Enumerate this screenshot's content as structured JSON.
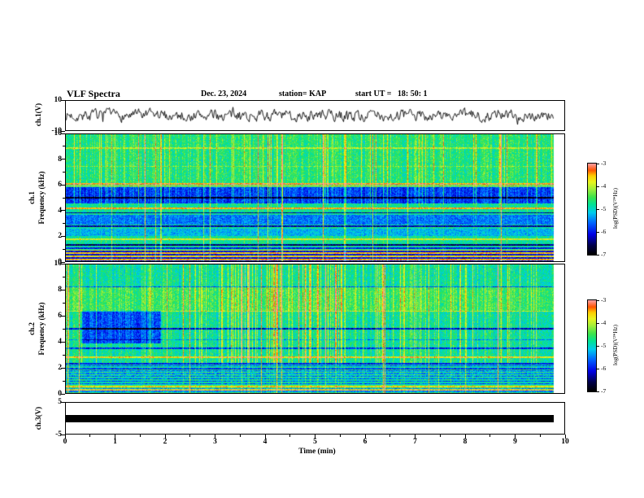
{
  "header": {
    "title": "VLF Spectra",
    "date": "Dec. 23, 2024",
    "station": "station= KAP",
    "start_ut": "start UT =   18: 50: 1"
  },
  "axes": {
    "x": {
      "label": "Time (min)",
      "min": 0,
      "max": 10,
      "major_ticks": [
        0,
        1,
        2,
        3,
        4,
        5,
        6,
        7,
        8,
        9,
        10
      ]
    },
    "ch1_wave": {
      "label": "ch.1(V)",
      "min": -10,
      "max": 10,
      "tick_labels": [
        10,
        -10
      ]
    },
    "ch1_spec": {
      "label_line1": "ch.1",
      "label_line2": "Frequency (kHz)",
      "min": 0,
      "max": 10,
      "major_ticks": [
        0,
        2,
        4,
        6,
        8,
        10
      ]
    },
    "ch2_spec": {
      "label_line1": "ch.2",
      "label_line2": "Frequency (kHz)",
      "min": 0,
      "max": 10,
      "major_ticks": [
        0,
        2,
        4,
        6,
        8,
        10
      ]
    },
    "ch3": {
      "label": "ch.3(V)",
      "min": -5,
      "max": 5,
      "tick_labels": [
        5,
        -5
      ]
    }
  },
  "colorbar": {
    "label": "log(PSD)(V²*Hz)",
    "min": -7,
    "max": -3,
    "tick_labels": [
      -3,
      -4,
      -5,
      -6,
      -7
    ],
    "stops": [
      {
        "t": 0.0,
        "c": "#000000"
      },
      {
        "t": 0.1,
        "c": "#00004d"
      },
      {
        "t": 0.22,
        "c": "#0000e6"
      },
      {
        "t": 0.35,
        "c": "#0066ff"
      },
      {
        "t": 0.46,
        "c": "#00ccee"
      },
      {
        "t": 0.55,
        "c": "#00e296"
      },
      {
        "t": 0.63,
        "c": "#3ae34d"
      },
      {
        "t": 0.72,
        "c": "#a0ef3a"
      },
      {
        "t": 0.8,
        "c": "#eaf51e"
      },
      {
        "t": 0.87,
        "c": "#ffcc00"
      },
      {
        "t": 0.93,
        "c": "#ff5500"
      },
      {
        "t": 1.0,
        "c": "#ff9c9c"
      }
    ]
  },
  "chart_data": [
    {
      "id": "ch1_waveform",
      "type": "line",
      "description": "Channel 1 time-series voltage: band-limited noise, mean 0 V, typical peaks ±5 to ±7 V, continuous over 0–9.8 min",
      "xlim": [
        0,
        10
      ],
      "ylim": [
        -10,
        10
      ],
      "data_end_min": 9.78,
      "seed": 7,
      "amplitude": 3.2,
      "smooth": 0.5
    },
    {
      "id": "ch1_spectrogram",
      "type": "heatmap",
      "description": "Channel 1 VLF power spectral density spectrogram, 0–10 kHz vs 0–9.8 min; green/cyan noise background near -4.8, dark blue band 4.6–5.9 kHz, strong red line near 6.1 kHz, bright hum harmonic lines below 1 kHz, many bright vertical sferic streaks above ~4.5 kHz",
      "xlim": [
        0,
        10
      ],
      "ylim": [
        0,
        10
      ],
      "zlim": [
        -7,
        -3
      ],
      "base_level": -4.8,
      "data_end_min": 9.78,
      "seed": 11,
      "bands": [
        {
          "y0": 6.2,
          "y1": 10,
          "dv": 0.15
        },
        {
          "y0": 4.6,
          "y1": 5.9,
          "dv": -1.0
        },
        {
          "y0": 2.9,
          "y1": 3.7,
          "dv": -0.75
        },
        {
          "y0": 2.0,
          "y1": 2.6,
          "dv": -0.45
        },
        {
          "y0": 0.0,
          "y1": 0.95,
          "dv": -1.3
        }
      ],
      "lines": [
        {
          "y": 6.1,
          "dv": 1.45,
          "w": 0.07
        },
        {
          "y": 5.93,
          "dv": 1.0,
          "w": 0.05
        },
        {
          "y": 4.18,
          "dv": 1.35,
          "w": 0.06
        },
        {
          "y": 5.05,
          "dv": -1.2,
          "w": 0.05
        },
        {
          "y": 3.85,
          "dv": -1.6,
          "w": 0.05
        },
        {
          "y": 2.78,
          "dv": -1.5,
          "w": 0.05
        },
        {
          "y": 1.32,
          "dv": -1.7,
          "w": 0.05
        },
        {
          "y": 1.05,
          "dv": -1.2,
          "w": 0.04
        },
        {
          "y": 1.75,
          "dv": 0.9,
          "w": 0.05
        },
        {
          "y": 0.15,
          "dv": 2.6,
          "w": 0.05
        },
        {
          "y": 0.42,
          "dv": 2.4,
          "w": 0.05
        },
        {
          "y": 0.68,
          "dv": 2.5,
          "w": 0.05
        },
        {
          "y": 0.9,
          "dv": 2.2,
          "w": 0.04
        },
        {
          "y": 8.95,
          "dv": 0.6,
          "w": 0.05
        },
        {
          "y": 7.5,
          "dv": 0.4,
          "w": 0.05
        }
      ],
      "streaks": {
        "density": 0.1,
        "strength": 0.85,
        "min_khz": 4.5,
        "full_density": 0.02,
        "full_strength": 1.5
      }
    },
    {
      "id": "ch2_spectrogram",
      "type": "heatmap",
      "description": "Channel 2 VLF power spectral density spectrogram, 0–10 kHz vs 0–9.8 min; brighter band 6.4–8.2 kHz, dark lines near 5.0 and 3.5 kHz, blue patch 0.3–1.9 min at 4–6.4 kHz, fine horizontal striations below ~2.2 kHz, cluster of intense red vertical streaks around 3.2–5.6 min",
      "xlim": [
        0,
        10
      ],
      "ylim": [
        0,
        10
      ],
      "zlim": [
        -7,
        -3
      ],
      "base_level": -4.8,
      "data_end_min": 9.78,
      "seed": 23,
      "bands": [
        {
          "y0": 6.4,
          "y1": 8.25,
          "dv": 0.3
        },
        {
          "y0": 0.0,
          "y1": 2.25,
          "dv": -0.35
        }
      ],
      "lines": [
        {
          "y": 8.28,
          "dv": -0.9,
          "w": 0.05
        },
        {
          "y": 6.38,
          "dv": 0.8,
          "w": 0.05
        },
        {
          "y": 5.05,
          "dv": -1.4,
          "w": 0.06
        },
        {
          "y": 4.2,
          "dv": -0.6,
          "w": 0.04
        },
        {
          "y": 3.5,
          "dv": -1.1,
          "w": 0.05
        },
        {
          "y": 2.82,
          "dv": 1.1,
          "w": 0.05
        },
        {
          "y": 2.3,
          "dv": -1.2,
          "w": 0.05
        },
        {
          "y": 1.9,
          "dv": -0.9,
          "w": 0.04
        },
        {
          "y": 0.52,
          "dv": 1.7,
          "w": 0.05
        },
        {
          "y": 0.28,
          "dv": 1.4,
          "w": 0.04
        }
      ],
      "striation": {
        "y0": 0.0,
        "y1": 2.25,
        "period": 0.2,
        "dv": 0.55
      },
      "patches": [
        {
          "x0": 0.3,
          "x1": 1.9,
          "y0": 3.9,
          "y1": 6.4,
          "dv": -0.9
        }
      ],
      "streaks": {
        "density": 0.12,
        "strength": 0.75,
        "min_khz": 2.4,
        "full_density": 0.015,
        "full_strength": 1.4
      },
      "extra_streaks": {
        "x0": 3.2,
        "x1": 5.6,
        "density": 0.22,
        "strength": 1.2
      }
    },
    {
      "id": "ch3_bar",
      "type": "line",
      "description": "Channel 3 voltage: flat/saturated trace rendered as a thick black bar at 0 V across 0–9.8 min",
      "xlim": [
        0,
        10
      ],
      "ylim": [
        -5,
        5
      ],
      "value": 0,
      "data_end_min": 9.78
    }
  ]
}
